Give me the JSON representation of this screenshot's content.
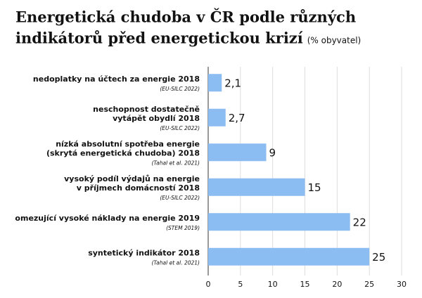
{
  "chart_data": {
    "type": "hbar",
    "title": [
      "Energetická chudoba v ČR podle různých",
      "indikátorů před energetickou krizí"
    ],
    "subtitle": "(% obyvatel)",
    "categories": [
      [
        "nedoplatky na účtech za energie 2018"
      ],
      [
        "neschopnost dostatečně",
        "vytápět obydlí 2018"
      ],
      [
        "nízká absolutní spotřeba energie",
        "(skrytá energetická chudoba) 2018"
      ],
      [
        "vysoký podíl výdajů na energie",
        "v příjmech domácností 2018"
      ],
      [
        "omezující vysoké náklady na energie 2019"
      ],
      [
        "syntetický indikátor 2018"
      ]
    ],
    "sources": [
      "(EU-SILC 2022)",
      "(EU-SILC 2022)",
      "(Tahal et al. 2021)",
      "(EU-SILC 2022)",
      "(STEM 2019)",
      "(Tahal et al. 2021)"
    ],
    "values": [
      2.1,
      2.7,
      9,
      15,
      22,
      25
    ],
    "value_labels": [
      "2,1",
      "2,7",
      "9",
      "15",
      "22",
      "25"
    ],
    "color": "#8bbcf2",
    "xlim": [
      0,
      30
    ],
    "xticks": [
      0,
      5,
      10,
      15,
      20,
      25,
      30
    ],
    "grid": true
  }
}
